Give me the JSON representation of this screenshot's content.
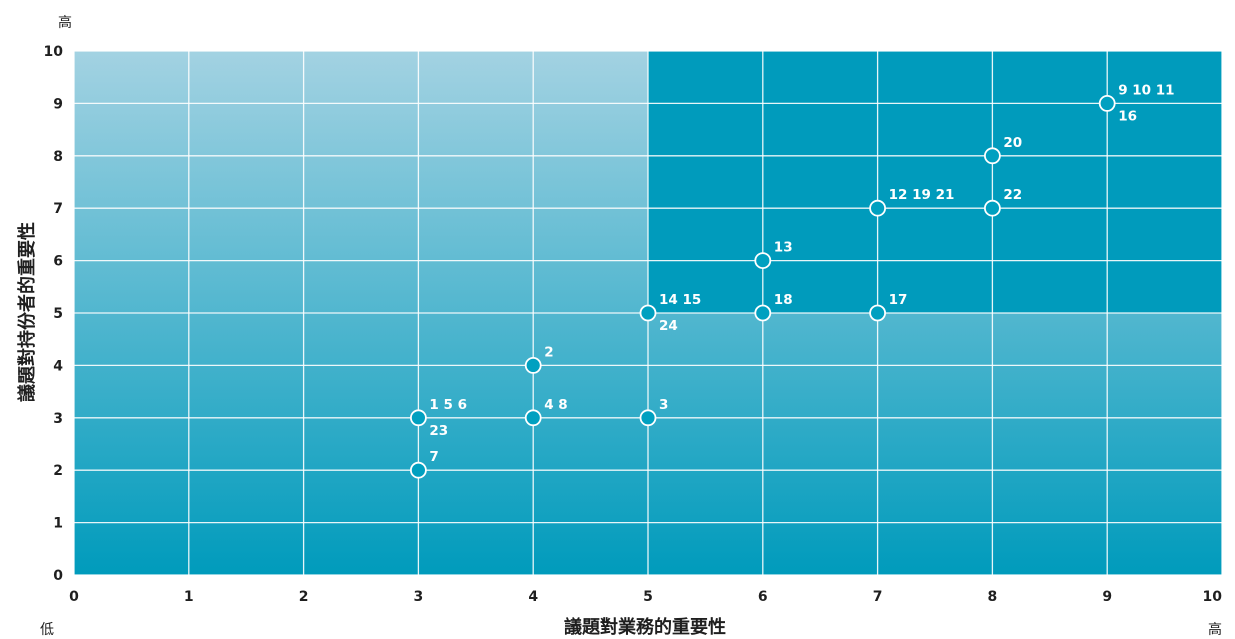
{
  "chart_data": {
    "type": "scatter",
    "title": "",
    "xlabel": "議題對業務的重要性",
    "ylabel": "議題對持份者的重要性",
    "xlim": [
      0,
      10
    ],
    "ylim": [
      0,
      10
    ],
    "xticks": [
      "0",
      "1",
      "2",
      "3",
      "4",
      "5",
      "6",
      "7",
      "8",
      "9",
      "10"
    ],
    "yticks": [
      "0",
      "1",
      "2",
      "3",
      "4",
      "5",
      "6",
      "7",
      "8",
      "9",
      "10"
    ],
    "grid": true,
    "low_label": "低",
    "high_label_x": "高",
    "high_label_y": "高",
    "highlight_region": {
      "x": [
        5,
        10
      ],
      "y": [
        5,
        10
      ],
      "color": "#009bbc"
    },
    "colors": {
      "background_top": "#a3d2e2",
      "background_bottom": "#009bbc",
      "point_fill": "#00a0c0",
      "point_stroke": "#ffffff"
    },
    "points": [
      {
        "x": 3,
        "y": 2,
        "labels": [
          "7"
        ]
      },
      {
        "x": 3,
        "y": 3,
        "labels": [
          "1  5  6",
          "23"
        ]
      },
      {
        "x": 4,
        "y": 3,
        "labels": [
          "4  8"
        ]
      },
      {
        "x": 4,
        "y": 4,
        "labels": [
          "2"
        ]
      },
      {
        "x": 5,
        "y": 3,
        "labels": [
          "3"
        ]
      },
      {
        "x": 5,
        "y": 5,
        "labels": [
          "14 15",
          "24"
        ]
      },
      {
        "x": 6,
        "y": 5,
        "labels": [
          "18"
        ]
      },
      {
        "x": 6,
        "y": 6,
        "labels": [
          "13"
        ]
      },
      {
        "x": 7,
        "y": 5,
        "labels": [
          "17"
        ]
      },
      {
        "x": 7,
        "y": 7,
        "labels": [
          "12 19 21"
        ]
      },
      {
        "x": 8,
        "y": 7,
        "labels": [
          "22"
        ]
      },
      {
        "x": 8,
        "y": 8,
        "labels": [
          "20"
        ]
      },
      {
        "x": 9,
        "y": 9,
        "labels": [
          "9  10 11",
          "16"
        ]
      }
    ]
  }
}
